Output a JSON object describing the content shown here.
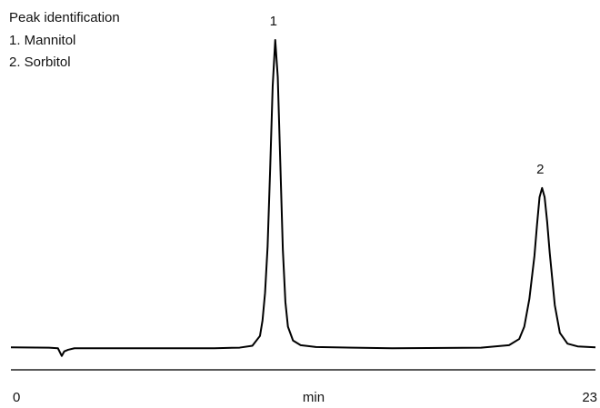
{
  "chart_data": {
    "type": "line",
    "legend_title": "Peak identification",
    "legend_entries": [
      "1. Mannitol",
      "2. Sorbitol"
    ],
    "xlabel": "min",
    "xlim": [
      0,
      23
    ],
    "xticks": [
      0,
      23
    ],
    "ylim": [
      -7,
      100
    ],
    "annotations": [
      {
        "text": "1",
        "x": 10.4,
        "y": 100
      },
      {
        "text": "2",
        "x": 20.9,
        "y": 52
      }
    ],
    "series": [
      {
        "color": "#000000",
        "x": [
          0,
          1.5,
          1.85,
          2.0,
          2.1,
          2.25,
          2.5,
          4,
          8,
          9,
          9.5,
          9.8,
          9.9,
          10.0,
          10.1,
          10.2,
          10.3,
          10.4,
          10.5,
          10.6,
          10.7,
          10.8,
          10.9,
          11.1,
          11.4,
          12,
          15,
          18.5,
          19.6,
          20,
          20.2,
          20.4,
          20.6,
          20.7,
          20.8,
          20.9,
          21,
          21.1,
          21.2,
          21.4,
          21.6,
          21.9,
          22.3,
          23
        ],
        "values": [
          0.3,
          0.2,
          0,
          -2.5,
          -1,
          -0.5,
          0,
          0,
          0,
          0.2,
          0.8,
          4,
          9,
          18,
          33,
          58,
          85,
          100,
          88,
          60,
          32,
          15,
          7,
          2.5,
          1,
          0.4,
          0,
          0.2,
          1,
          3,
          7,
          16,
          30,
          40,
          49,
          52,
          49,
          41,
          31,
          14,
          5,
          1.5,
          0.6,
          0.3
        ]
      }
    ]
  }
}
